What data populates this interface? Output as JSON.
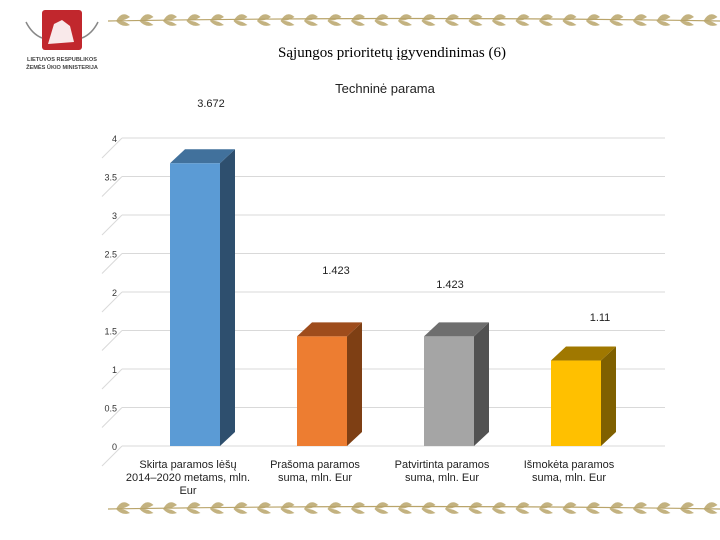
{
  "slide": {
    "title": "Sąjungos prioritetų įgyvendinimas (6)",
    "logo_text": [
      "LIETUVOS RESPUBLIKOS",
      "ŽEMĖS ŪKIO MINISTERIJA"
    ]
  },
  "colors": {
    "gold": "#b9a46a",
    "logo_red": "#c1272d",
    "grid": "#d9d9d9"
  },
  "chart_data": {
    "type": "bar",
    "title": "Techninė parama",
    "categories": [
      "Skirta paramos lėšų 2014–2020 metams, mln. Eur",
      "Prašoma paramos suma, mln. Eur",
      "Patvirtinta paramos suma, mln. Eur",
      "Išmokėta paramos suma, mln. Eur"
    ],
    "values": [
      3.672,
      1.423,
      1.423,
      1.11
    ],
    "data_labels": [
      "3.672",
      "1.423",
      "1.423",
      "1.11"
    ],
    "bar_colors": [
      {
        "front": "#5b9bd5",
        "side": "#2e4f6e",
        "top": "#41719c"
      },
      {
        "front": "#ed7d31",
        "side": "#7e3f14",
        "top": "#9e4c1c"
      },
      {
        "front": "#a5a5a5",
        "side": "#525252",
        "top": "#6e6e6e"
      },
      {
        "front": "#ffc000",
        "side": "#7f6000",
        "top": "#a07800"
      }
    ],
    "ylim": [
      0,
      4
    ],
    "yticks": [
      "0",
      "0.5",
      "1",
      "1.5",
      "2",
      "2.5",
      "3",
      "3.5",
      "4"
    ],
    "grid": true,
    "legend": "none"
  }
}
